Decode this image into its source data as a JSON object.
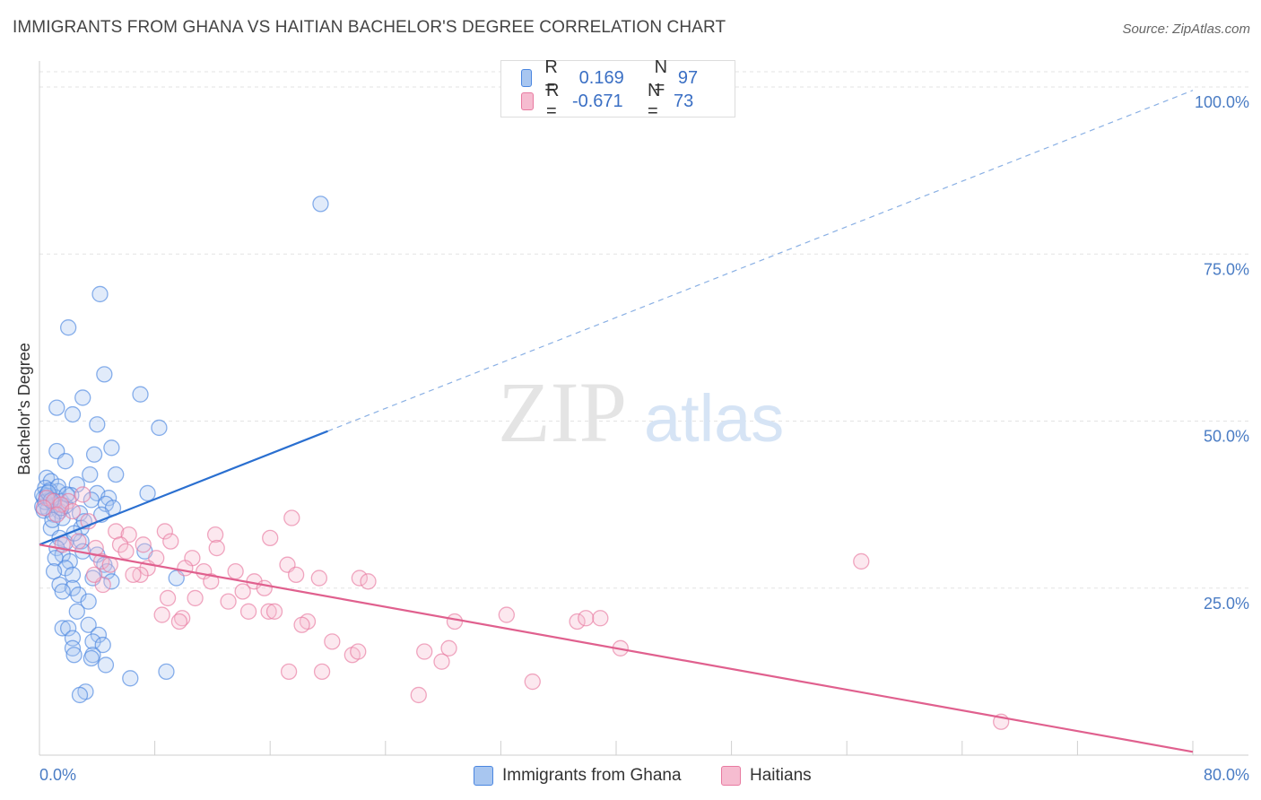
{
  "title": "IMMIGRANTS FROM GHANA VS HAITIAN BACHELOR'S DEGREE CORRELATION CHART",
  "source": "Source: ZipAtlas.com",
  "watermark": {
    "zip": "ZIP",
    "atlas": "atlas"
  },
  "colors": {
    "ghana": "#4a86e0",
    "ghana_fill": "#a8c6f0",
    "ghana_line": "#2a6fd0",
    "haiti": "#e87aa0",
    "haiti_fill": "#f6bcd0",
    "haiti_line": "#e0608e",
    "axis_text": "#4a7cc4",
    "grid": "#e3e3e3"
  },
  "legend": {
    "rows": [
      {
        "r_label": "R =",
        "r_value": "0.169",
        "n_label": "N =",
        "n_value": "97"
      },
      {
        "r_label": "R =",
        "r_value": "-0.671",
        "n_label": "N =",
        "n_value": "73"
      }
    ]
  },
  "bottom_legend": [
    {
      "label": "Immigrants from Ghana"
    },
    {
      "label": "Haitians"
    }
  ],
  "chart_data": {
    "type": "scatter",
    "xlabel": "",
    "ylabel": "Bachelor's Degree",
    "xlim": [
      0,
      80
    ],
    "ylim": [
      0,
      100
    ],
    "x_tick_labels": [
      "0.0%",
      "80.0%"
    ],
    "y_ticks": [
      25,
      50,
      75,
      100
    ],
    "y_tick_labels": [
      "25.0%",
      "50.0%",
      "75.0%",
      "100.0%"
    ],
    "grid": true,
    "series": [
      {
        "name": "Immigrants from Ghana",
        "trend": {
          "x0": 0,
          "y0": 31.5,
          "x1": 20,
          "y1": 48.5,
          "dashed_to_x": 80,
          "dashed_to_y": 99.5
        },
        "points": [
          [
            19.5,
            82.5
          ],
          [
            4.2,
            69
          ],
          [
            2.0,
            64
          ],
          [
            4.5,
            57
          ],
          [
            7.0,
            54
          ],
          [
            3.0,
            53.5
          ],
          [
            1.2,
            52
          ],
          [
            2.3,
            51
          ],
          [
            4.0,
            49.5
          ],
          [
            8.3,
            49
          ],
          [
            1.2,
            45.5
          ],
          [
            3.8,
            45
          ],
          [
            5.0,
            46
          ],
          [
            1.8,
            44
          ],
          [
            3.5,
            42
          ],
          [
            5.3,
            42
          ],
          [
            0.5,
            41.5
          ],
          [
            0.8,
            41
          ],
          [
            2.6,
            40.5
          ],
          [
            0.4,
            40
          ],
          [
            1.3,
            39.5
          ],
          [
            4.0,
            39.2
          ],
          [
            7.5,
            39.2
          ],
          [
            0.3,
            38.5
          ],
          [
            0.7,
            38.3
          ],
          [
            1.5,
            38.0
          ],
          [
            3.6,
            38.2
          ],
          [
            4.8,
            38.5
          ],
          [
            0.9,
            37.8
          ],
          [
            1.0,
            37.5
          ],
          [
            0.2,
            37.2
          ],
          [
            4.6,
            37.6
          ],
          [
            5.1,
            37.0
          ],
          [
            0.6,
            36.8
          ],
          [
            1.4,
            36.5
          ],
          [
            2.8,
            36.2
          ],
          [
            1.0,
            36.0
          ],
          [
            4.3,
            36.0
          ],
          [
            1.6,
            35.5
          ],
          [
            0.8,
            34.0
          ],
          [
            2.9,
            34.0
          ],
          [
            1.4,
            32.5
          ],
          [
            2.9,
            32.0
          ],
          [
            1.8,
            31.8
          ],
          [
            1.2,
            31.0
          ],
          [
            3.0,
            30.5
          ],
          [
            7.3,
            30.5
          ],
          [
            1.6,
            30.0
          ],
          [
            4.0,
            30.0
          ],
          [
            1.1,
            29.5
          ],
          [
            2.1,
            29.0
          ],
          [
            4.5,
            28.5
          ],
          [
            1.8,
            28.0
          ],
          [
            1.0,
            27.5
          ],
          [
            2.3,
            27.0
          ],
          [
            4.7,
            27.5
          ],
          [
            3.7,
            26.5
          ],
          [
            5.0,
            26.0
          ],
          [
            1.4,
            25.5
          ],
          [
            2.3,
            25.0
          ],
          [
            1.6,
            24.5
          ],
          [
            9.5,
            26.5
          ],
          [
            2.7,
            24.0
          ],
          [
            3.4,
            23.0
          ],
          [
            2.6,
            21.5
          ],
          [
            3.4,
            19.5
          ],
          [
            1.6,
            19.0
          ],
          [
            2.0,
            19.0
          ],
          [
            4.1,
            18.0
          ],
          [
            2.3,
            17.5
          ],
          [
            3.7,
            17.0
          ],
          [
            4.4,
            16.5
          ],
          [
            2.3,
            16.0
          ],
          [
            3.7,
            15.0
          ],
          [
            2.4,
            15.0
          ],
          [
            3.6,
            14.5
          ],
          [
            4.6,
            13.5
          ],
          [
            8.8,
            12.5
          ],
          [
            6.3,
            11.5
          ],
          [
            3.2,
            9.5
          ],
          [
            2.8,
            9.0
          ],
          [
            0.2,
            39.0
          ],
          [
            0.5,
            38.8
          ],
          [
            1.1,
            38.6
          ],
          [
            0.4,
            37.9
          ],
          [
            1.8,
            37.3
          ],
          [
            0.7,
            39.6
          ],
          [
            2.2,
            38.9
          ],
          [
            1.3,
            40.2
          ],
          [
            0.3,
            36.6
          ],
          [
            0.9,
            35.2
          ],
          [
            2.4,
            33.2
          ],
          [
            3.1,
            35.0
          ],
          [
            1.9,
            39.0
          ],
          [
            0.6,
            39.3
          ],
          [
            1.5,
            37.0
          ],
          [
            0.8,
            38.1
          ]
        ]
      },
      {
        "name": "Haitians",
        "trend": {
          "x0": 0,
          "y0": 31.5,
          "x1": 80,
          "y1": 0.5
        },
        "points": [
          [
            0.5,
            38.5
          ],
          [
            1.0,
            38.0
          ],
          [
            2.0,
            38.0
          ],
          [
            1.5,
            37.5
          ],
          [
            0.3,
            37.0
          ],
          [
            2.3,
            36.5
          ],
          [
            1.2,
            36.0
          ],
          [
            3.4,
            35.0
          ],
          [
            17.5,
            35.5
          ],
          [
            5.3,
            33.5
          ],
          [
            8.7,
            33.5
          ],
          [
            6.2,
            33.0
          ],
          [
            12.2,
            33.0
          ],
          [
            16.0,
            32.5
          ],
          [
            9.1,
            32.0
          ],
          [
            5.6,
            31.5
          ],
          [
            7.2,
            31.5
          ],
          [
            3.9,
            31.0
          ],
          [
            12.3,
            31.0
          ],
          [
            6.0,
            30.5
          ],
          [
            10.6,
            29.5
          ],
          [
            8.1,
            29.5
          ],
          [
            4.3,
            29.0
          ],
          [
            17.2,
            28.5
          ],
          [
            4.9,
            28.5
          ],
          [
            10.1,
            28.0
          ],
          [
            7.5,
            28.0
          ],
          [
            11.4,
            27.5
          ],
          [
            13.6,
            27.5
          ],
          [
            7.0,
            27.0
          ],
          [
            17.8,
            27.0
          ],
          [
            6.5,
            27.0
          ],
          [
            19.4,
            26.5
          ],
          [
            22.2,
            26.5
          ],
          [
            22.8,
            26.0
          ],
          [
            11.9,
            26.0
          ],
          [
            14.9,
            26.0
          ],
          [
            4.4,
            25.5
          ],
          [
            15.6,
            25.0
          ],
          [
            14.1,
            24.5
          ],
          [
            8.9,
            23.5
          ],
          [
            10.8,
            23.5
          ],
          [
            13.1,
            23.0
          ],
          [
            15.9,
            21.5
          ],
          [
            14.5,
            21.5
          ],
          [
            16.3,
            21.5
          ],
          [
            8.5,
            21.0
          ],
          [
            9.9,
            20.5
          ],
          [
            9.7,
            20.0
          ],
          [
            18.6,
            20.0
          ],
          [
            28.8,
            20.0
          ],
          [
            32.4,
            21.0
          ],
          [
            37.3,
            20.0
          ],
          [
            37.9,
            20.5
          ],
          [
            38.9,
            20.5
          ],
          [
            18.2,
            19.5
          ],
          [
            20.3,
            17.0
          ],
          [
            21.7,
            15.0
          ],
          [
            22.1,
            15.5
          ],
          [
            26.7,
            15.5
          ],
          [
            28.4,
            16.0
          ],
          [
            40.3,
            16.0
          ],
          [
            27.9,
            14.0
          ],
          [
            17.3,
            12.5
          ],
          [
            19.6,
            12.5
          ],
          [
            34.2,
            11.0
          ],
          [
            26.3,
            9.0
          ],
          [
            57.0,
            29.0
          ],
          [
            2.7,
            32.0
          ],
          [
            1.6,
            31.5
          ],
          [
            3.8,
            27.0
          ],
          [
            66.7,
            5.0
          ],
          [
            3.0,
            39.0
          ]
        ]
      }
    ]
  }
}
